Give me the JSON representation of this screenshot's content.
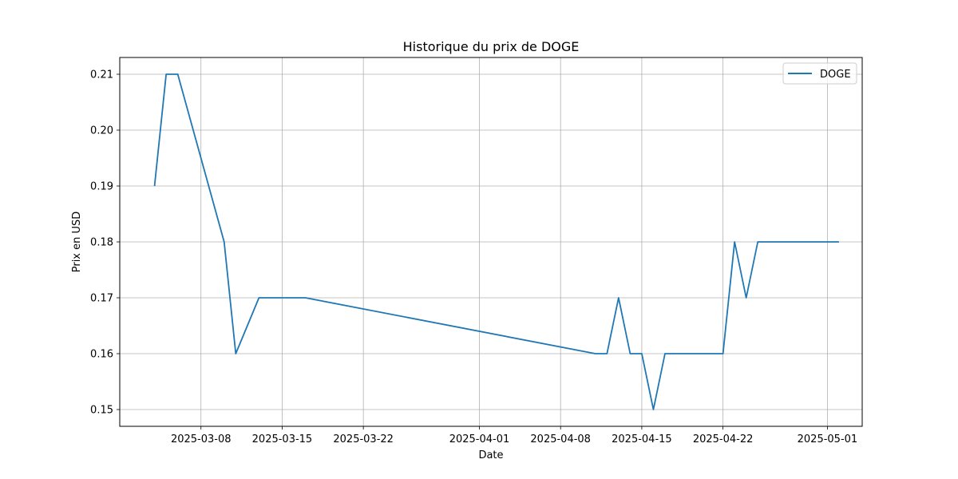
{
  "chart_data": {
    "type": "line",
    "title": "Historique du prix de DOGE",
    "xlabel": "Date",
    "ylabel": "Prix en USD",
    "grid": true,
    "legend_position": "top-right",
    "xlim": [
      "2025-03-01",
      "2025-05-04"
    ],
    "ylim": [
      0.147,
      0.213
    ],
    "x_ticks": [
      "2025-03-08",
      "2025-03-15",
      "2025-03-22",
      "2025-04-01",
      "2025-04-08",
      "2025-04-15",
      "2025-04-22",
      "2025-05-01"
    ],
    "y_ticks": [
      "0.15",
      "0.16",
      "0.17",
      "0.18",
      "0.19",
      "0.20",
      "0.21"
    ],
    "series": [
      {
        "name": "DOGE",
        "color": "#1f77b4",
        "points": [
          {
            "x": "2025-03-04",
            "y": 0.19
          },
          {
            "x": "2025-03-05",
            "y": 0.21
          },
          {
            "x": "2025-03-06",
            "y": 0.21
          },
          {
            "x": "2025-03-10",
            "y": 0.18
          },
          {
            "x": "2025-03-11",
            "y": 0.16
          },
          {
            "x": "2025-03-13",
            "y": 0.17
          },
          {
            "x": "2025-03-17",
            "y": 0.17
          },
          {
            "x": "2025-04-11",
            "y": 0.16
          },
          {
            "x": "2025-04-12",
            "y": 0.16
          },
          {
            "x": "2025-04-13",
            "y": 0.17
          },
          {
            "x": "2025-04-14",
            "y": 0.16
          },
          {
            "x": "2025-04-15",
            "y": 0.16
          },
          {
            "x": "2025-04-16",
            "y": 0.15
          },
          {
            "x": "2025-04-17",
            "y": 0.16
          },
          {
            "x": "2025-04-22",
            "y": 0.16
          },
          {
            "x": "2025-04-23",
            "y": 0.18
          },
          {
            "x": "2025-04-24",
            "y": 0.17
          },
          {
            "x": "2025-04-25",
            "y": 0.18
          },
          {
            "x": "2025-05-02",
            "y": 0.18
          }
        ]
      }
    ]
  }
}
